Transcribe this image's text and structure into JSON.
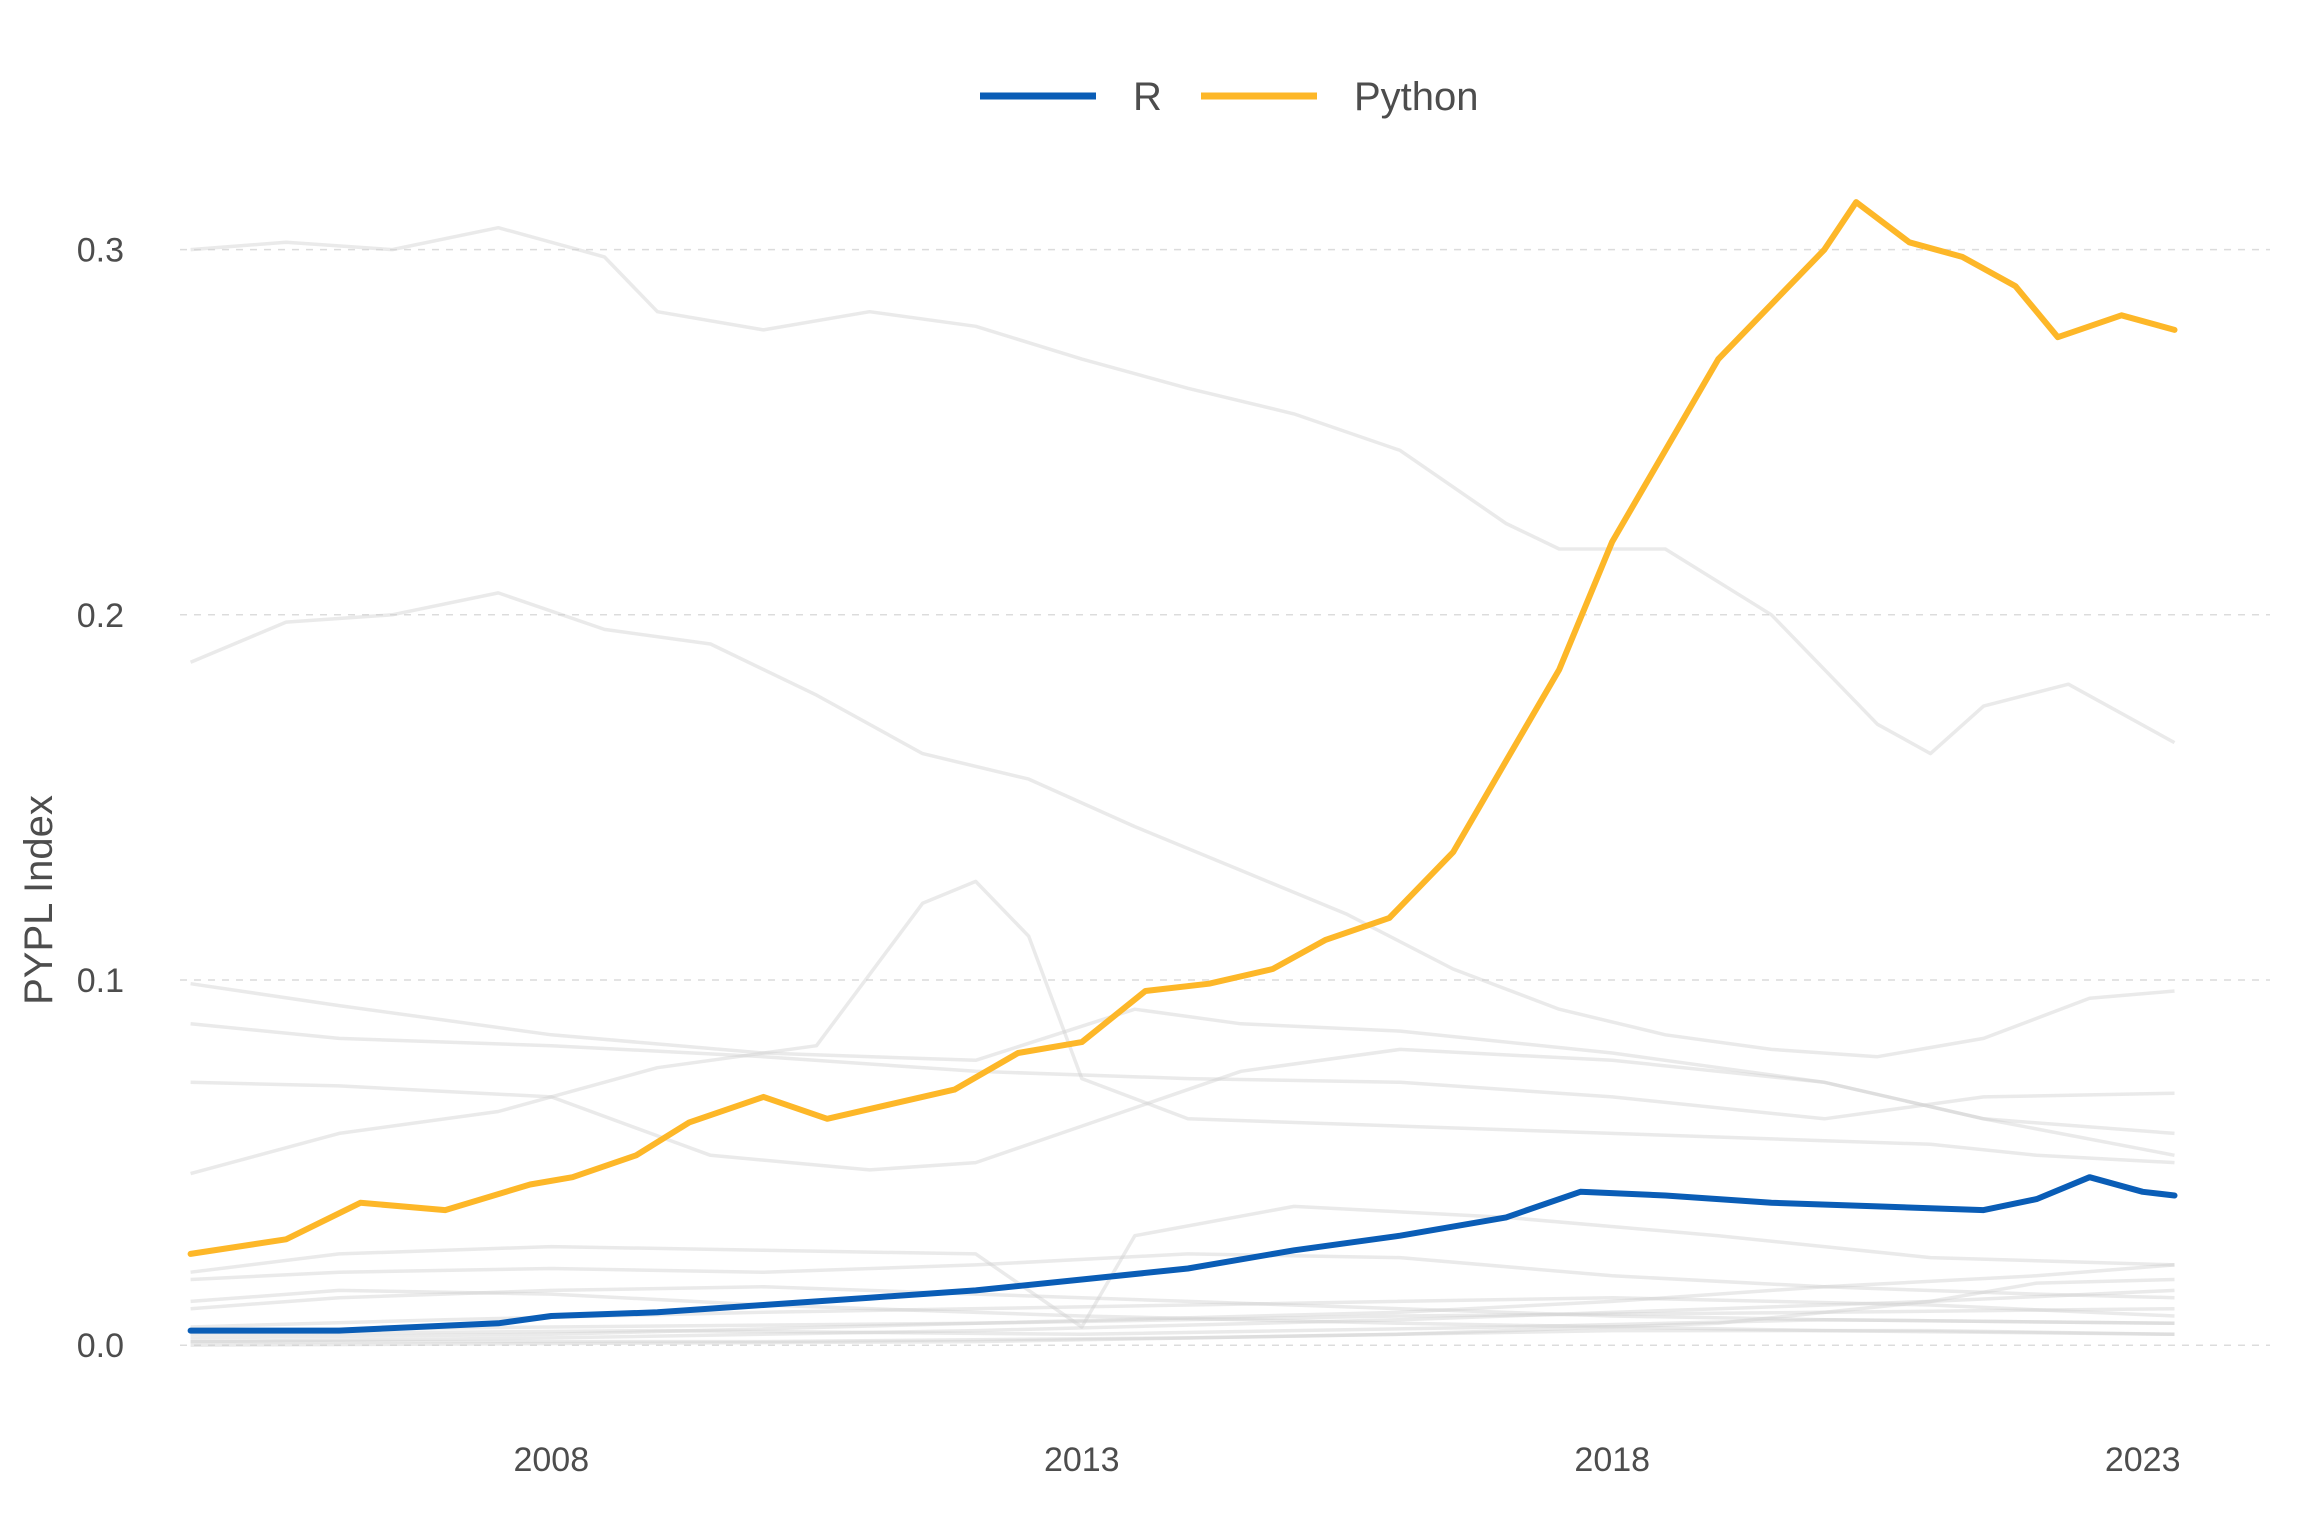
{
  "chart_data": {
    "type": "line",
    "title": "",
    "xlabel": "",
    "ylabel": "PYPL Index",
    "xlim": [
      2004.5,
      2024.2
    ],
    "ylim": [
      -0.015,
      0.33
    ],
    "x_ticks": [
      {
        "value": 2008,
        "label": "2008"
      },
      {
        "value": 2013,
        "label": "2013"
      },
      {
        "value": 2018,
        "label": "2018"
      },
      {
        "value": 2023,
        "label": "2023"
      }
    ],
    "y_ticks": [
      {
        "value": 0.0,
        "label": "0.0"
      },
      {
        "value": 0.1,
        "label": "0.1"
      },
      {
        "value": 0.2,
        "label": "0.2"
      },
      {
        "value": 0.3,
        "label": "0.3"
      }
    ],
    "grid": "horizontal-dashed",
    "legend": {
      "position": "top",
      "entries": [
        {
          "name": "R",
          "color": "#0a5db6"
        },
        {
          "name": "Python",
          "color": "#fdb728"
        }
      ]
    },
    "background_series_color": "#d0d0d0",
    "series": [
      {
        "name": "R",
        "color": "#0a5db6",
        "highlight": true,
        "points": [
          [
            2004.6,
            0.004
          ],
          [
            2006.0,
            0.004
          ],
          [
            2007.5,
            0.006
          ],
          [
            2008.0,
            0.008
          ],
          [
            2009.0,
            0.009
          ],
          [
            2010.0,
            0.011
          ],
          [
            2011.0,
            0.013
          ],
          [
            2012.0,
            0.015
          ],
          [
            2013.0,
            0.018
          ],
          [
            2014.0,
            0.021
          ],
          [
            2015.0,
            0.026
          ],
          [
            2016.0,
            0.03
          ],
          [
            2017.0,
            0.035
          ],
          [
            2017.7,
            0.042
          ],
          [
            2018.5,
            0.041
          ],
          [
            2019.5,
            0.039
          ],
          [
            2020.5,
            0.038
          ],
          [
            2021.5,
            0.037
          ],
          [
            2022.0,
            0.04
          ],
          [
            2022.5,
            0.046
          ],
          [
            2023.0,
            0.042
          ],
          [
            2023.3,
            0.041
          ]
        ]
      },
      {
        "name": "Python",
        "color": "#fdb728",
        "highlight": true,
        "points": [
          [
            2004.6,
            0.025
          ],
          [
            2005.5,
            0.029
          ],
          [
            2006.2,
            0.039
          ],
          [
            2007.0,
            0.037
          ],
          [
            2007.8,
            0.044
          ],
          [
            2008.2,
            0.046
          ],
          [
            2008.8,
            0.052
          ],
          [
            2009.3,
            0.061
          ],
          [
            2010.0,
            0.068
          ],
          [
            2010.6,
            0.062
          ],
          [
            2011.2,
            0.066
          ],
          [
            2011.8,
            0.07
          ],
          [
            2012.4,
            0.08
          ],
          [
            2013.0,
            0.083
          ],
          [
            2013.6,
            0.097
          ],
          [
            2014.2,
            0.099
          ],
          [
            2014.8,
            0.103
          ],
          [
            2015.3,
            0.111
          ],
          [
            2015.9,
            0.117
          ],
          [
            2016.5,
            0.135
          ],
          [
            2017.0,
            0.16
          ],
          [
            2017.5,
            0.185
          ],
          [
            2018.0,
            0.22
          ],
          [
            2018.5,
            0.245
          ],
          [
            2019.0,
            0.27
          ],
          [
            2019.5,
            0.285
          ],
          [
            2020.0,
            0.3
          ],
          [
            2020.3,
            0.313
          ],
          [
            2020.8,
            0.302
          ],
          [
            2021.3,
            0.298
          ],
          [
            2021.8,
            0.29
          ],
          [
            2022.2,
            0.276
          ],
          [
            2022.8,
            0.282
          ],
          [
            2023.3,
            0.278
          ]
        ]
      },
      {
        "name": "",
        "highlight": false,
        "points": [
          [
            2004.6,
            0.3
          ],
          [
            2005.5,
            0.302
          ],
          [
            2006.5,
            0.3
          ],
          [
            2007.5,
            0.306
          ],
          [
            2008.5,
            0.298
          ],
          [
            2009.0,
            0.283
          ],
          [
            2010.0,
            0.278
          ],
          [
            2011.0,
            0.283
          ],
          [
            2012.0,
            0.279
          ],
          [
            2013.0,
            0.27
          ],
          [
            2014.0,
            0.262
          ],
          [
            2015.0,
            0.255
          ],
          [
            2016.0,
            0.245
          ],
          [
            2017.0,
            0.225
          ],
          [
            2017.5,
            0.218
          ],
          [
            2018.5,
            0.218
          ],
          [
            2019.5,
            0.2
          ],
          [
            2020.5,
            0.17
          ],
          [
            2021.0,
            0.162
          ],
          [
            2021.5,
            0.175
          ],
          [
            2022.3,
            0.181
          ],
          [
            2023.3,
            0.165
          ]
        ]
      },
      {
        "name": "",
        "highlight": false,
        "points": [
          [
            2004.6,
            0.187
          ],
          [
            2005.5,
            0.198
          ],
          [
            2006.5,
            0.2
          ],
          [
            2007.5,
            0.206
          ],
          [
            2008.5,
            0.196
          ],
          [
            2009.5,
            0.192
          ],
          [
            2010.5,
            0.178
          ],
          [
            2011.5,
            0.162
          ],
          [
            2012.5,
            0.155
          ],
          [
            2013.5,
            0.142
          ],
          [
            2014.5,
            0.13
          ],
          [
            2015.5,
            0.118
          ],
          [
            2016.5,
            0.103
          ],
          [
            2017.5,
            0.092
          ],
          [
            2018.5,
            0.085
          ],
          [
            2019.5,
            0.081
          ],
          [
            2020.5,
            0.079
          ],
          [
            2021.5,
            0.084
          ],
          [
            2022.5,
            0.095
          ],
          [
            2023.3,
            0.097
          ]
        ]
      },
      {
        "name": "",
        "highlight": false,
        "points": [
          [
            2004.6,
            0.088
          ],
          [
            2006.0,
            0.084
          ],
          [
            2008.0,
            0.082
          ],
          [
            2010.0,
            0.079
          ],
          [
            2012.0,
            0.075
          ],
          [
            2014.0,
            0.073
          ],
          [
            2016.0,
            0.072
          ],
          [
            2018.0,
            0.068
          ],
          [
            2020.0,
            0.062
          ],
          [
            2021.5,
            0.068
          ],
          [
            2023.3,
            0.069
          ]
        ]
      },
      {
        "name": "",
        "highlight": false,
        "points": [
          [
            2004.6,
            0.072
          ],
          [
            2006.0,
            0.071
          ],
          [
            2008.0,
            0.068
          ],
          [
            2009.5,
            0.052
          ],
          [
            2011.0,
            0.048
          ],
          [
            2012.0,
            0.05
          ],
          [
            2013.0,
            0.06
          ],
          [
            2014.5,
            0.075
          ],
          [
            2016.0,
            0.081
          ],
          [
            2018.0,
            0.078
          ],
          [
            2020.0,
            0.072
          ],
          [
            2021.5,
            0.062
          ],
          [
            2023.3,
            0.052
          ]
        ]
      },
      {
        "name": "",
        "highlight": false,
        "points": [
          [
            2004.6,
            0.047
          ],
          [
            2006.0,
            0.058
          ],
          [
            2007.5,
            0.064
          ],
          [
            2009.0,
            0.076
          ],
          [
            2010.5,
            0.082
          ],
          [
            2011.5,
            0.121
          ],
          [
            2012.0,
            0.127
          ],
          [
            2012.5,
            0.112
          ],
          [
            2013.0,
            0.073
          ],
          [
            2014.0,
            0.062
          ],
          [
            2016.0,
            0.06
          ],
          [
            2018.0,
            0.058
          ],
          [
            2020.0,
            0.056
          ],
          [
            2021.0,
            0.055
          ],
          [
            2022.0,
            0.052
          ],
          [
            2023.3,
            0.05
          ]
        ]
      },
      {
        "name": "",
        "highlight": false,
        "points": [
          [
            2004.6,
            0.099
          ],
          [
            2006.0,
            0.093
          ],
          [
            2008.0,
            0.085
          ],
          [
            2010.0,
            0.08
          ],
          [
            2012.0,
            0.078
          ],
          [
            2013.5,
            0.092
          ],
          [
            2014.5,
            0.088
          ],
          [
            2016.0,
            0.086
          ],
          [
            2018.0,
            0.08
          ],
          [
            2020.0,
            0.072
          ],
          [
            2021.5,
            0.062
          ],
          [
            2023.3,
            0.058
          ]
        ]
      },
      {
        "name": "",
        "highlight": false,
        "points": [
          [
            2004.6,
            0.02
          ],
          [
            2006.0,
            0.025
          ],
          [
            2008.0,
            0.027
          ],
          [
            2010.0,
            0.026
          ],
          [
            2012.0,
            0.025
          ],
          [
            2013.0,
            0.005
          ],
          [
            2013.5,
            0.03
          ],
          [
            2015.0,
            0.038
          ],
          [
            2017.0,
            0.035
          ],
          [
            2019.0,
            0.03
          ],
          [
            2021.0,
            0.024
          ],
          [
            2023.3,
            0.022
          ]
        ]
      },
      {
        "name": "",
        "highlight": false,
        "points": [
          [
            2004.6,
            0.018
          ],
          [
            2006.0,
            0.02
          ],
          [
            2008.0,
            0.021
          ],
          [
            2010.0,
            0.02
          ],
          [
            2012.0,
            0.022
          ],
          [
            2014.0,
            0.025
          ],
          [
            2016.0,
            0.024
          ],
          [
            2018.0,
            0.019
          ],
          [
            2020.0,
            0.016
          ],
          [
            2022.0,
            0.014
          ],
          [
            2023.3,
            0.013
          ]
        ]
      },
      {
        "name": "",
        "highlight": false,
        "points": [
          [
            2004.6,
            0.01
          ],
          [
            2006.0,
            0.013
          ],
          [
            2008.0,
            0.015
          ],
          [
            2010.0,
            0.016
          ],
          [
            2012.0,
            0.014
          ],
          [
            2014.0,
            0.012
          ],
          [
            2016.0,
            0.01
          ],
          [
            2018.0,
            0.008
          ],
          [
            2020.0,
            0.007
          ],
          [
            2023.3,
            0.006
          ]
        ]
      },
      {
        "name": "",
        "highlight": false,
        "points": [
          [
            2004.6,
            0.002
          ],
          [
            2008.0,
            0.003
          ],
          [
            2012.0,
            0.006
          ],
          [
            2016.0,
            0.009
          ],
          [
            2018.0,
            0.012
          ],
          [
            2020.0,
            0.016
          ],
          [
            2022.0,
            0.019
          ],
          [
            2023.3,
            0.022
          ]
        ]
      },
      {
        "name": "",
        "highlight": false,
        "points": [
          [
            2004.6,
            0.001
          ],
          [
            2008.0,
            0.002
          ],
          [
            2012.0,
            0.004
          ],
          [
            2016.0,
            0.007
          ],
          [
            2019.0,
            0.01
          ],
          [
            2021.0,
            0.012
          ],
          [
            2023.3,
            0.015
          ]
        ]
      },
      {
        "name": "",
        "highlight": false,
        "points": [
          [
            2004.6,
            0.004
          ],
          [
            2008.0,
            0.005
          ],
          [
            2012.0,
            0.006
          ],
          [
            2016.0,
            0.008
          ],
          [
            2020.0,
            0.009
          ],
          [
            2023.3,
            0.01
          ]
        ]
      },
      {
        "name": "",
        "highlight": false,
        "points": [
          [
            2004.6,
            0.003
          ],
          [
            2009.0,
            0.004
          ],
          [
            2013.0,
            0.003
          ],
          [
            2017.0,
            0.005
          ],
          [
            2020.0,
            0.007
          ],
          [
            2023.3,
            0.006
          ]
        ]
      },
      {
        "name": "",
        "highlight": false,
        "points": [
          [
            2004.6,
            0.001
          ],
          [
            2010.0,
            0.001
          ],
          [
            2014.0,
            0.002
          ],
          [
            2018.0,
            0.004
          ],
          [
            2021.0,
            0.004
          ],
          [
            2023.3,
            0.003
          ]
        ]
      },
      {
        "name": "",
        "highlight": false,
        "points": [
          [
            2004.6,
            0.012
          ],
          [
            2006.0,
            0.015
          ],
          [
            2008.0,
            0.014
          ],
          [
            2010.0,
            0.011
          ],
          [
            2013.0,
            0.008
          ],
          [
            2016.0,
            0.006
          ],
          [
            2020.0,
            0.004
          ],
          [
            2023.3,
            0.003
          ]
        ]
      },
      {
        "name": "",
        "highlight": false,
        "points": [
          [
            2004.6,
            0.0
          ],
          [
            2012.0,
            0.001
          ],
          [
            2016.0,
            0.003
          ],
          [
            2019.0,
            0.006
          ],
          [
            2021.0,
            0.012
          ],
          [
            2022.0,
            0.017
          ],
          [
            2023.3,
            0.018
          ]
        ]
      },
      {
        "name": "",
        "highlight": false,
        "points": [
          [
            2004.6,
            0.005
          ],
          [
            2007.0,
            0.007
          ],
          [
            2010.0,
            0.009
          ],
          [
            2014.0,
            0.011
          ],
          [
            2018.0,
            0.013
          ],
          [
            2021.0,
            0.011
          ],
          [
            2023.3,
            0.008
          ]
        ]
      }
    ]
  }
}
